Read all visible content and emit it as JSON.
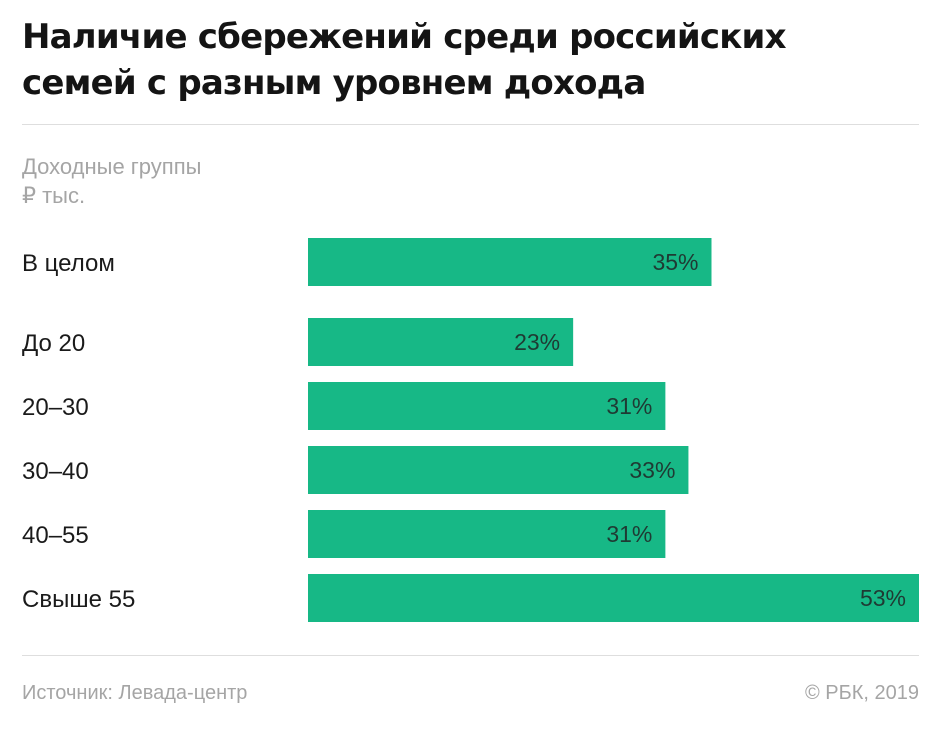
{
  "header": {
    "title": "Наличие сбережений среди российских семей с разным уровнем дохода",
    "subtitle_line1": "Доходные группы",
    "subtitle_line2": "₽ тыс."
  },
  "footer": {
    "source": "Источник: Левада-центр",
    "credit": "© РБК, 2019"
  },
  "chart_data": {
    "type": "bar",
    "orientation": "horizontal",
    "title": "Наличие сбережений среди российских семей с разным уровнем дохода",
    "ylabel": "Доходные группы ₽ тыс.",
    "xlabel": "",
    "categories": [
      "В целом",
      "До 20",
      "20–30",
      "30–40",
      "40–55",
      "Свыше 55"
    ],
    "values": [
      35,
      23,
      31,
      33,
      31,
      53
    ],
    "value_labels": [
      "35%",
      "23%",
      "31%",
      "33%",
      "31%",
      "53%"
    ],
    "xlim": [
      0,
      53
    ],
    "grid": false,
    "legend": "none",
    "bar_color": "#17b886"
  }
}
